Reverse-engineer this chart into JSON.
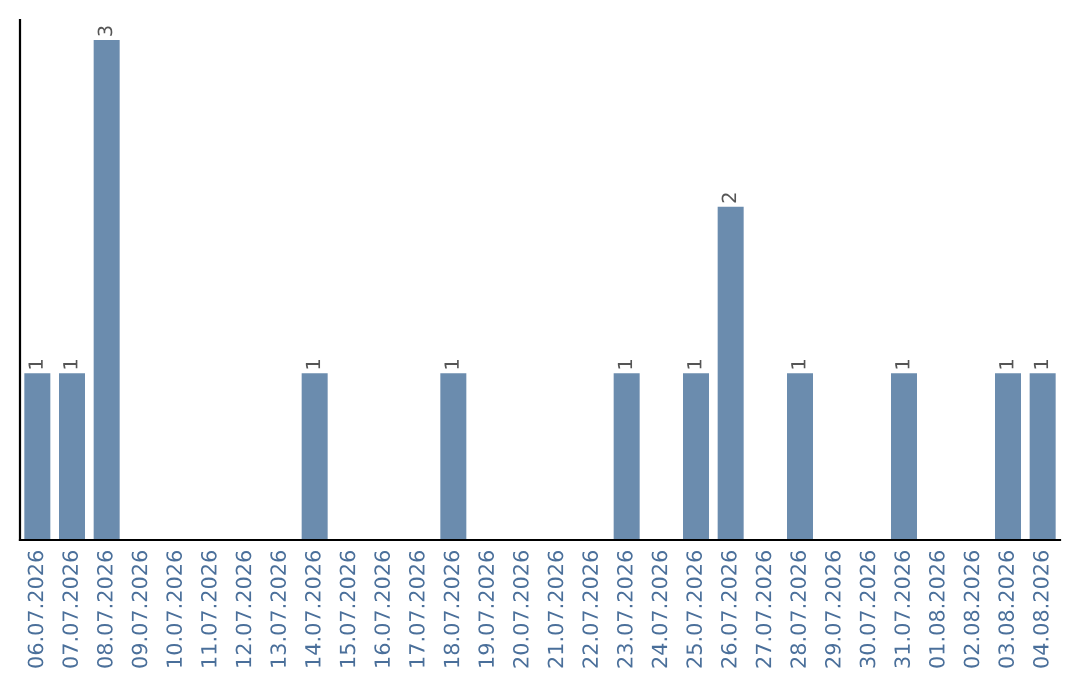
{
  "chart_data": {
    "type": "bar",
    "categories": [
      "06.07.2026",
      "07.07.2026",
      "08.07.2026",
      "09.07.2026",
      "10.07.2026",
      "11.07.2026",
      "12.07.2026",
      "13.07.2026",
      "14.07.2026",
      "15.07.2026",
      "16.07.2026",
      "17.07.2026",
      "18.07.2026",
      "19.07.2026",
      "20.07.2026",
      "21.07.2026",
      "22.07.2026",
      "23.07.2026",
      "24.07.2026",
      "25.07.2026",
      "26.07.2026",
      "27.07.2026",
      "28.07.2026",
      "29.07.2026",
      "30.07.2026",
      "31.07.2026",
      "01.08.2026",
      "02.08.2026",
      "03.08.2026",
      "04.08.2026"
    ],
    "values": [
      1,
      1,
      3,
      0,
      0,
      0,
      0,
      0,
      1,
      0,
      0,
      0,
      1,
      0,
      0,
      0,
      0,
      1,
      0,
      1,
      2,
      0,
      1,
      0,
      0,
      1,
      0,
      0,
      1,
      1
    ],
    "value_labels": [
      "1",
      "1",
      "3",
      null,
      null,
      null,
      null,
      null,
      "1",
      null,
      null,
      null,
      "1",
      null,
      null,
      null,
      null,
      "1",
      null,
      "1",
      "2",
      null,
      "1",
      null,
      null,
      "1",
      null,
      null,
      "1",
      "1"
    ],
    "color": "#6b8cae",
    "grid": false,
    "legend": false,
    "tick_labels": "x"
  }
}
